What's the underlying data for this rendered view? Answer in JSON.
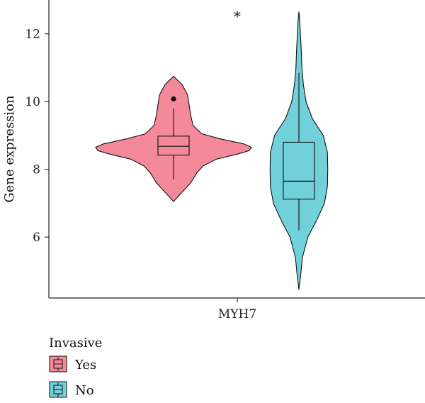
{
  "chart_data": {
    "type": "violin",
    "xlabel": "",
    "ylabel": "Gene expression",
    "categories": [
      "MYH7"
    ],
    "ylim": [
      4.2,
      13.0
    ],
    "yticks": [
      6,
      8,
      10,
      12
    ],
    "grid": false,
    "annotation": "*",
    "legend": {
      "title": "Invasive",
      "placement": "bottom-left",
      "entries": [
        {
          "label": "Yes",
          "color": "#F4899A"
        },
        {
          "label": "No",
          "color": "#72D0DA"
        }
      ]
    },
    "series": [
      {
        "name": "Yes",
        "color": "#F4899A",
        "box": {
          "q1": 8.42,
          "median": 8.68,
          "q3": 8.98,
          "whisker_low": 7.7,
          "whisker_high": 9.8
        },
        "outliers": [
          10.08
        ],
        "density": [
          [
            7.05,
            0.0
          ],
          [
            7.3,
            0.1
          ],
          [
            7.6,
            0.22
          ],
          [
            7.9,
            0.3
          ],
          [
            8.1,
            0.38
          ],
          [
            8.3,
            0.55
          ],
          [
            8.45,
            0.82
          ],
          [
            8.55,
            0.97
          ],
          [
            8.65,
            1.0
          ],
          [
            8.75,
            0.9
          ],
          [
            8.9,
            0.6
          ],
          [
            9.05,
            0.36
          ],
          [
            9.3,
            0.25
          ],
          [
            9.6,
            0.22
          ],
          [
            9.9,
            0.2
          ],
          [
            10.2,
            0.18
          ],
          [
            10.5,
            0.11
          ],
          [
            10.75,
            0.0
          ]
        ]
      },
      {
        "name": "No",
        "color": "#72D0DA",
        "box": {
          "q1": 7.12,
          "median": 7.65,
          "q3": 8.8,
          "whisker_low": 6.2,
          "whisker_high": 10.85
        },
        "outliers": [],
        "density": [
          [
            4.45,
            0.0
          ],
          [
            4.8,
            0.05
          ],
          [
            5.4,
            0.12
          ],
          [
            6.0,
            0.3
          ],
          [
            6.5,
            0.6
          ],
          [
            7.0,
            0.86
          ],
          [
            7.5,
            0.96
          ],
          [
            8.0,
            0.97
          ],
          [
            8.5,
            0.96
          ],
          [
            9.0,
            0.82
          ],
          [
            9.5,
            0.45
          ],
          [
            10.0,
            0.24
          ],
          [
            10.5,
            0.15
          ],
          [
            11.0,
            0.1
          ],
          [
            11.5,
            0.08
          ],
          [
            12.0,
            0.05
          ],
          [
            12.4,
            0.025
          ],
          [
            12.65,
            0.0
          ]
        ]
      }
    ]
  }
}
